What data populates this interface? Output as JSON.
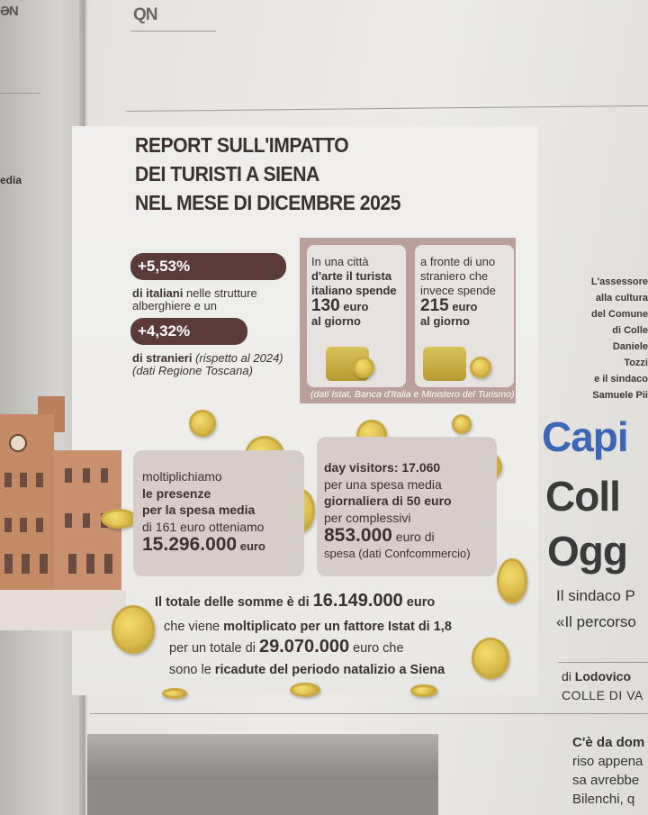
{
  "masthead": {
    "left_logo": "ƏN",
    "logo": "QN"
  },
  "left_fragment": "edia",
  "infographic": {
    "title_lines": [
      "REPORT SULL'IMPATTO",
      "DEI TURISTI A SIENA",
      "NEL MESE DI DICEMBRE 2025"
    ],
    "italians": {
      "pct": "+5,53%",
      "line1_bold": "di italiani",
      "line1_rest": " nelle strutture",
      "line2": "alberghiere e un"
    },
    "foreigners": {
      "pct": "+4,32%",
      "line1_bold": "di stranieri",
      "line1_rest": " (rispetto al 2024)",
      "line2": "(dati Regione Toscana)"
    },
    "spending": {
      "italian": [
        "In una città",
        "d'arte il turista",
        "italiano spende"
      ],
      "italian_amount": "130",
      "italian_unit": " euro",
      "italian_suffix": "al giorno",
      "foreign": [
        "a fronte di uno",
        "straniero che",
        "invece spende"
      ],
      "foreign_amount": "215",
      "foreign_unit": " euro",
      "foreign_suffix": "al giorno",
      "source": "(dati Istat, Banca d'Italia e Ministero del Turismo)"
    },
    "presences": {
      "lines": [
        "moltiplichiamo",
        "le presenze",
        "per la spesa media",
        "di 161 euro otteniamo"
      ],
      "amount": "15.296.000",
      "unit": " euro"
    },
    "day_visitors": {
      "lines": [
        "day visitors: 17.060",
        "per una spesa media",
        "giornaliera di 50 euro",
        "per complessivi"
      ],
      "amount": "853.000",
      "unit": " euro di",
      "suffix": "spesa (dati Confcommercio)"
    },
    "total": {
      "line1_pre": "Il totale delle somme è di ",
      "line1_amount": "16.149.000",
      "line1_post": " euro",
      "line2_pre": "che viene ",
      "line2_bold": "moltiplicato per un fattore Istat di 1,8",
      "line3_pre": "per un totale di ",
      "line3_amount": "29.070.000",
      "line3_post": " euro che",
      "line4_pre": "sono le ",
      "line4_bold": "ricadute del periodo natalizio a Siena"
    }
  },
  "right_column": {
    "caption": [
      "L'assessore",
      "alla cultura",
      "del Comune",
      "di Colle",
      "Daniele",
      "Tozzi",
      "e il sindaco",
      "Samuele Pii"
    ],
    "headline": [
      "Capi",
      "Coll",
      "Ogg"
    ],
    "subhead": [
      "Il sindaco P",
      "«Il percorso"
    ],
    "byline_pre": "di ",
    "byline_name": "Lodovico",
    "byline_place": "COLLE DI VA",
    "body": [
      "C'è da dom",
      "riso appena",
      "sa avrebbe",
      "Bilenchi, q"
    ]
  }
}
